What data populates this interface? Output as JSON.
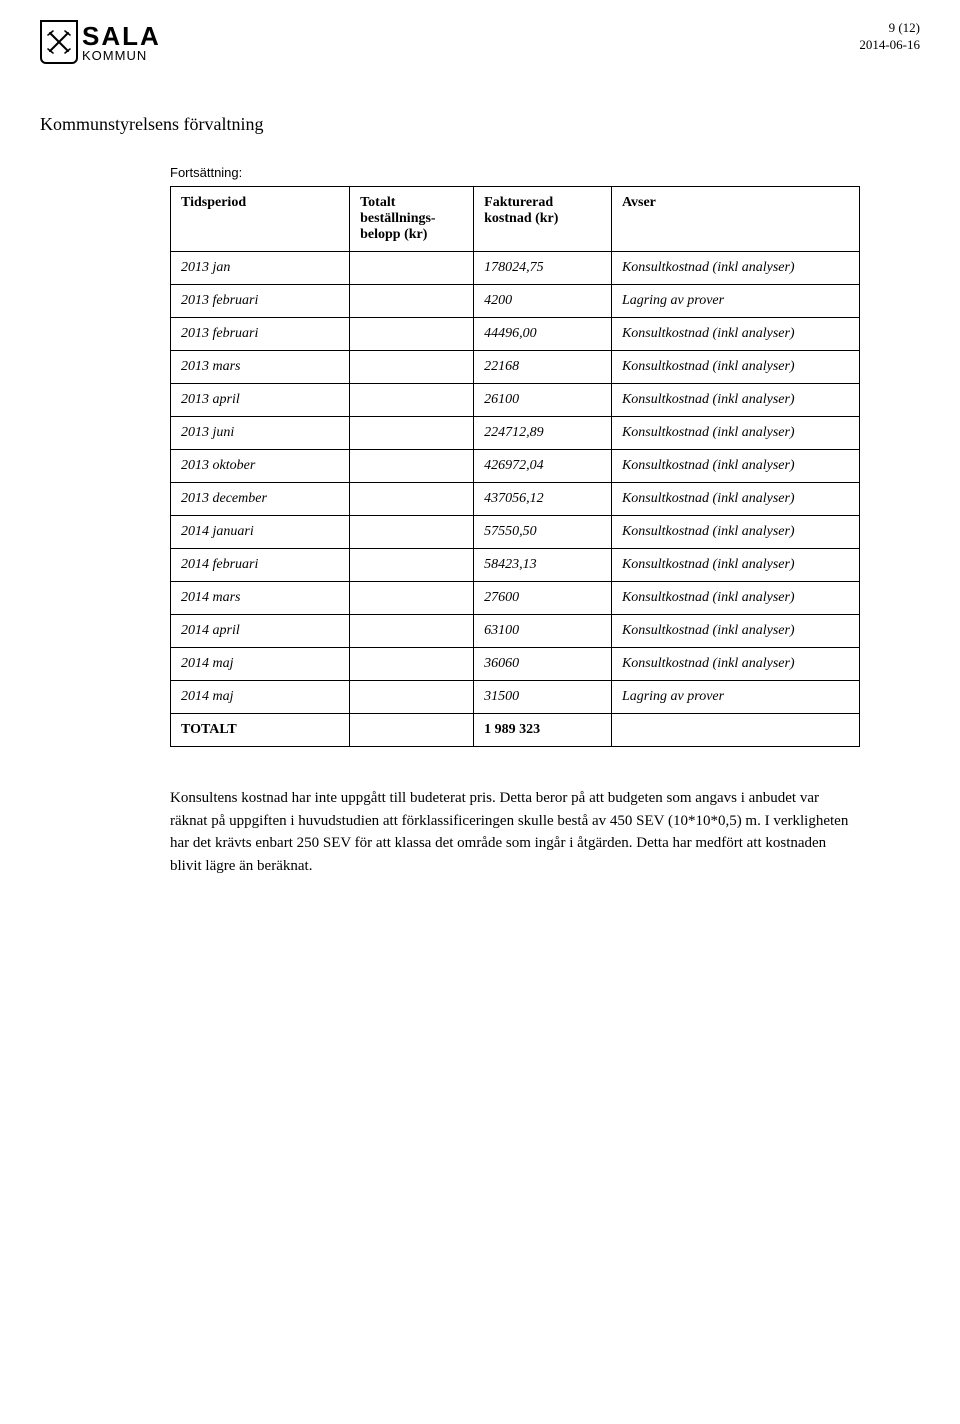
{
  "header": {
    "org_name": "SALA",
    "org_sub": "KOMMUN",
    "page_meta": "9 (12)",
    "date": "2014-06-16"
  },
  "section_title": "Kommunstyrelsens förvaltning",
  "continuation": "Fortsättning:",
  "table": {
    "columns": [
      "Tidsperiod",
      "Totalt beställnings-belopp (kr)",
      "Fakturerad kostnad (kr)",
      "Avser"
    ],
    "col_widths": [
      "26%",
      "18%",
      "20%",
      "36%"
    ],
    "rows": [
      [
        "2013 jan",
        "",
        "178024,75",
        "Konsultkostnad (inkl analyser)"
      ],
      [
        "2013 februari",
        "",
        "4200",
        "Lagring av prover"
      ],
      [
        "2013 februari",
        "",
        "44496,00",
        "Konsultkostnad (inkl analyser)"
      ],
      [
        "2013 mars",
        "",
        "22168",
        "Konsultkostnad (inkl analyser)"
      ],
      [
        "2013 april",
        "",
        "26100",
        "Konsultkostnad (inkl analyser)"
      ],
      [
        "2013 juni",
        "",
        "224712,89",
        "Konsultkostnad (inkl analyser)"
      ],
      [
        "2013 oktober",
        "",
        "426972,04",
        "Konsultkostnad (inkl analyser)"
      ],
      [
        "2013 december",
        "",
        "437056,12",
        "Konsultkostnad (inkl analyser)"
      ],
      [
        "2014 januari",
        "",
        "57550,50",
        "Konsultkostnad (inkl analyser)"
      ],
      [
        "2014 februari",
        "",
        "58423,13",
        "Konsultkostnad (inkl analyser)"
      ],
      [
        "2014 mars",
        "",
        "27600",
        "Konsultkostnad (inkl analyser)"
      ],
      [
        "2014 april",
        "",
        "63100",
        "Konsultkostnad (inkl analyser)"
      ],
      [
        "2014 maj",
        "",
        "36060",
        "Konsultkostnad (inkl analyser)"
      ],
      [
        "2014 maj",
        "",
        "31500",
        "Lagring av prover"
      ],
      [
        "TOTALT",
        "",
        "1 989 323",
        ""
      ]
    ]
  },
  "paragraph": "Konsultens kostnad har inte uppgått till budeterat pris. Detta beror på att budgeten som angavs i anbudet var räknat på uppgiften i huvudstudien att förklassificeringen skulle bestå av 450 SEV (10*10*0,5) m. I verkligheten har det krävts enbart 250 SEV för att klassa det område som ingår i åtgärden. Detta har medfört att kostnaden blivit lägre än beräknat.",
  "style": {
    "font_family": "Georgia, serif",
    "text_color": "#000000",
    "background_color": "#ffffff",
    "border_color": "#000000",
    "body_fontsize": 15,
    "table_fontsize": 14,
    "header_fontsize": 26
  }
}
